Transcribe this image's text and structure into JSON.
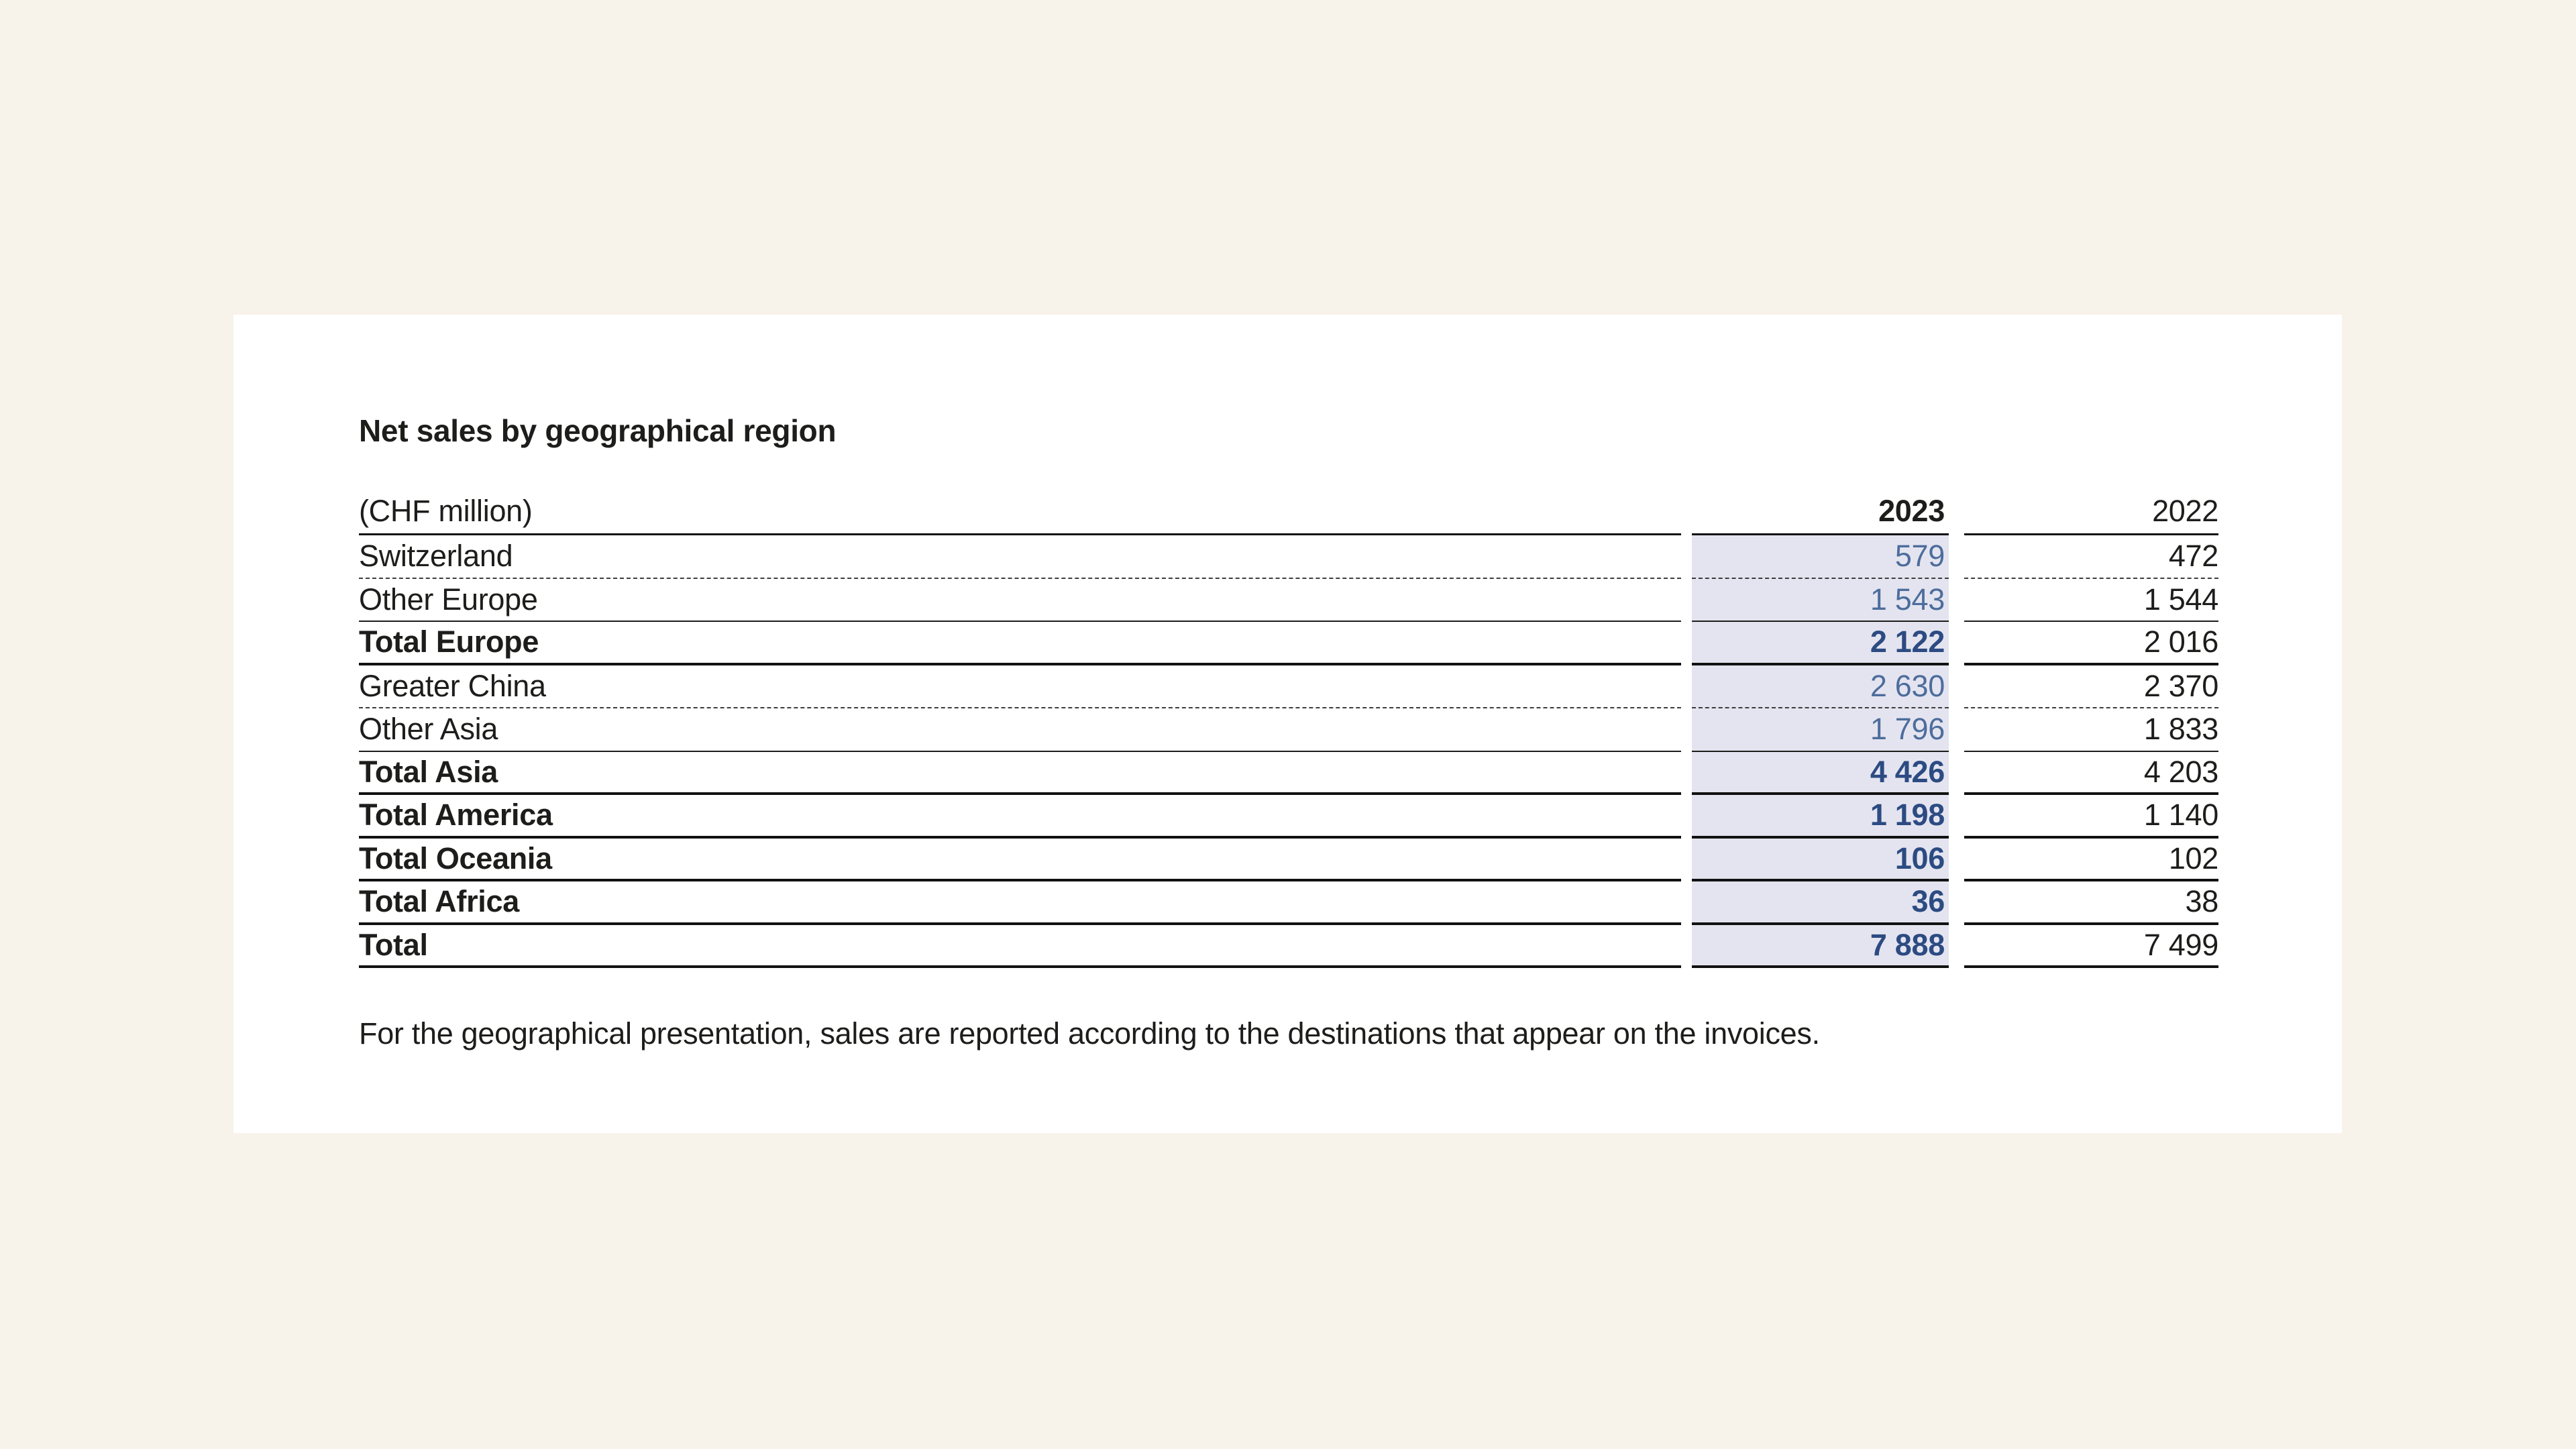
{
  "colors": {
    "page_background": "#f7f2ea",
    "card_background": "#ffffff",
    "text": "#1d1d1b",
    "highlight_column_background": "#e4e4f0",
    "value_2023_regular": "#4d6d9c",
    "value_2023_bold": "#2c4b82",
    "rule": "#111111"
  },
  "document": {
    "title": "Net sales by geographical region",
    "table": {
      "unit_label": "(CHF million)",
      "column_headers": {
        "current": "2023",
        "prior": "2022"
      },
      "rows": [
        {
          "label": "Switzerland",
          "y2023": "579",
          "y2022": "472"
        },
        {
          "label": "Other Europe",
          "y2023": "1 543",
          "y2022": "1 544"
        },
        {
          "label": "Total Europe",
          "y2023": "2 122",
          "y2022": "2 016"
        },
        {
          "label": "Greater China",
          "y2023": "2 630",
          "y2022": "2 370"
        },
        {
          "label": "Other Asia",
          "y2023": "1 796",
          "y2022": "1 833"
        },
        {
          "label": "Total Asia",
          "y2023": "4 426",
          "y2022": "4 203"
        },
        {
          "label": "Total America",
          "y2023": "1 198",
          "y2022": "1 140"
        },
        {
          "label": "Total Oceania",
          "y2023": "106",
          "y2022": "102"
        },
        {
          "label": "Total Africa",
          "y2023": "36",
          "y2022": "38"
        },
        {
          "label": "Total",
          "y2023": "7 888",
          "y2022": "7 499"
        }
      ]
    },
    "footnote": "For the geographical presentation, sales are reported according to the destinations that appear on the invoices."
  }
}
